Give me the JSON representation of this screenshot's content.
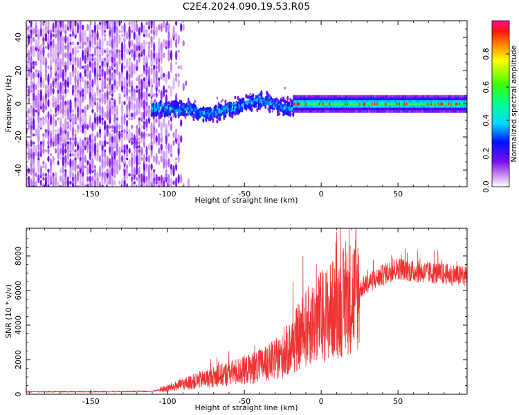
{
  "title": "C2E4.2024.090.19.53.R05",
  "chart_data": [
    {
      "type": "heatmap",
      "xlabel": "Height of straight line (km)",
      "ylabel": "Frequency (Hz)",
      "xlim": [
        -192,
        95
      ],
      "ylim": [
        -50,
        50
      ],
      "xticks": [
        -150,
        -100,
        -50,
        0,
        50
      ],
      "xtick_labels": [
        "-150",
        "-100",
        "-50",
        "0",
        "50"
      ],
      "yticks": [
        -40,
        -20,
        0,
        20,
        40
      ],
      "ytick_labels": [
        "-40",
        "-20",
        "0",
        "20",
        "40"
      ],
      "colorbar": {
        "label": "Normalized spectral amplitude",
        "range": [
          0,
          1
        ],
        "ticks": [
          0.0,
          0.2,
          0.4,
          0.6,
          0.8
        ],
        "tick_labels": [
          "0.0",
          "0.2",
          "0.4",
          "0.6",
          "0.8"
        ]
      },
      "regions": [
        {
          "name": "noise",
          "x_range": [
            -192,
            -110
          ],
          "freq_spread": 50,
          "amplitude": 0.1
        },
        {
          "name": "onset",
          "x_range": [
            -110,
            -18
          ],
          "freq_spread": 9,
          "amplitude": 0.35
        },
        {
          "name": "carrier",
          "x_range": [
            -18,
            95
          ],
          "freq_spread": 2.5,
          "amplitude": 0.55
        }
      ]
    },
    {
      "type": "line",
      "xlabel": "Height of straight line (km)",
      "ylabel": "SNR (10 * v/v)",
      "xlim": [
        -192,
        95
      ],
      "ylim": [
        0,
        9600
      ],
      "xticks": [
        -150,
        -100,
        -50,
        0,
        50
      ],
      "xtick_labels": [
        "-150",
        "-100",
        "-50",
        "0",
        "50"
      ],
      "yticks": [
        0,
        2000,
        4000,
        6000,
        8000
      ],
      "ytick_labels": [
        "0",
        "2000",
        "4000",
        "6000",
        "8000"
      ],
      "color": "#ee3333",
      "trend": {
        "x": [
          -192,
          -150,
          -110,
          -100,
          -80,
          -60,
          -40,
          -25,
          -10,
          0,
          10,
          20,
          30,
          40,
          50,
          60,
          75,
          95
        ],
        "y": [
          150,
          150,
          170,
          350,
          800,
          1200,
          1600,
          2200,
          3800,
          4500,
          5000,
          5700,
          6400,
          6900,
          7300,
          7100,
          7000,
          6800
        ]
      }
    }
  ]
}
